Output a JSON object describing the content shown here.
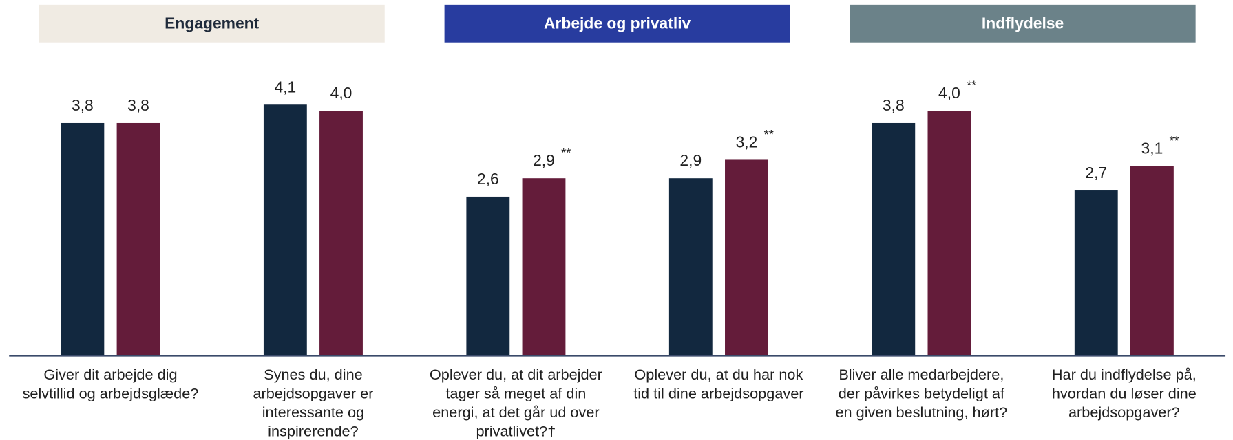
{
  "chart_data": {
    "type": "bar",
    "groups": [
      {
        "label": "Engagement",
        "color": "#f0ebe3",
        "text_color": "#1f2a3a"
      },
      {
        "label": "Arbejde og privatliv",
        "color": "#283c9f",
        "text_color": "#ffffff"
      },
      {
        "label": "Indflydelse",
        "color": "#6b8289",
        "text_color": "#ffffff"
      }
    ],
    "categories": [
      [
        "Giver dit arbejde dig",
        "selvtillid og arbejdsglæde?"
      ],
      [
        "Synes du, dine",
        "arbejdsopgaver er",
        "interessante og",
        "inspirerende?"
      ],
      [
        "Oplever du, at dit arbejder",
        "tager så meget af din",
        "energi, at det går ud over",
        "privatlivet?†"
      ],
      [
        "Oplever du, at du har nok",
        "tid til dine arbejdsopgaver"
      ],
      [
        "Bliver alle medarbejdere,",
        "der påvirkes betydeligt af",
        "en given beslutning, hørt?"
      ],
      [
        "Har du indflydelse på,",
        "hvordan du løser dine",
        "arbejdsopgaver?"
      ]
    ],
    "series": [
      {
        "color": "#12283f",
        "values": [
          3.8,
          4.1,
          2.6,
          2.9,
          3.8,
          2.7
        ],
        "value_labels": [
          "3,8",
          "4,1",
          "2,6",
          "2,9",
          "3,8",
          "2,7"
        ],
        "annotations": [
          null,
          null,
          null,
          null,
          null,
          null
        ]
      },
      {
        "color": "#641c3a",
        "values": [
          3.8,
          4.0,
          2.9,
          3.2,
          4.0,
          3.1
        ],
        "value_labels": [
          "3,8",
          "4,0",
          "2,9",
          "3,2",
          "4,0",
          "3,1"
        ],
        "annotations": [
          null,
          null,
          "**",
          "**",
          "**",
          "**"
        ]
      }
    ],
    "ylim": [
      0,
      5
    ],
    "axis_color": "#3a4a6a"
  }
}
